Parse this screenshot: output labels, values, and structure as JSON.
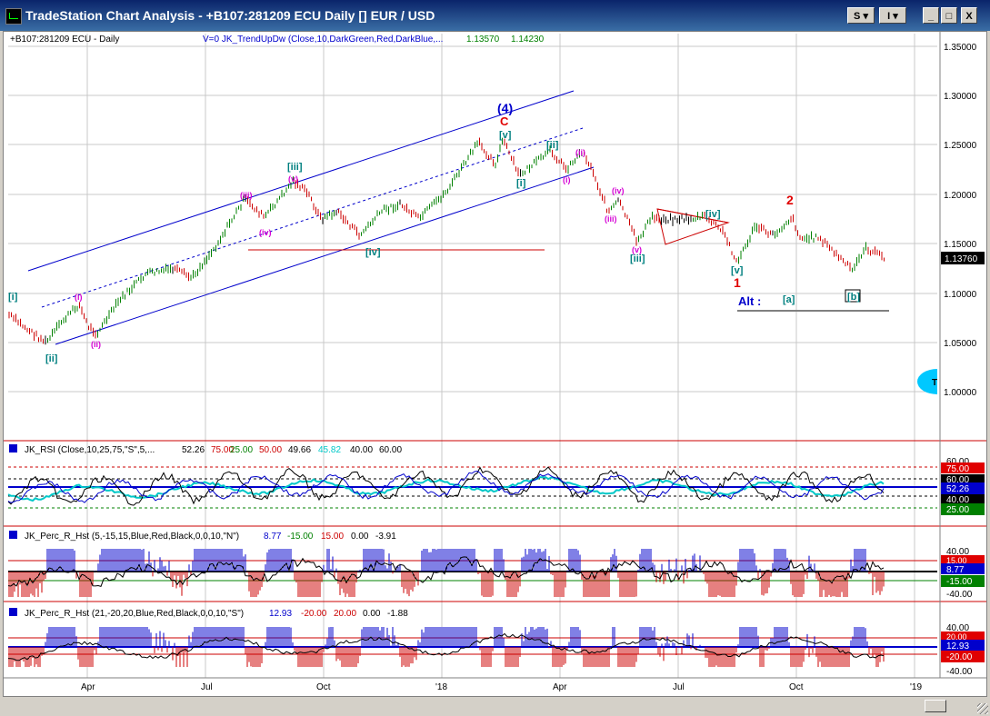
{
  "window": {
    "title": "TradeStation Chart Analysis - +B107:281209 ECU Daily [] EUR / USD",
    "btn_s": "S",
    "btn_i": "I",
    "btn_min": "_",
    "btn_max": "□",
    "btn_close": "X"
  },
  "chart": {
    "symbol_label": "+B107:281209 ECU - Daily",
    "indicator_header": "V=0  JK_TrendUpDw (Close,10,DarkGreen,Red,DarkBlue,...",
    "indicator_val1": "1.13570",
    "indicator_val2": "1.14230",
    "price_axis": [
      "1.35000",
      "1.30000",
      "1.25000",
      "1.20000",
      "1.15000",
      "1.10000",
      "1.05000",
      "1.00000"
    ],
    "last_price": "1.13760",
    "time_axis": [
      "Apr",
      "Jul",
      "Oct",
      "'18",
      "Apr",
      "Jul",
      "Oct",
      "'19"
    ],
    "wave_labels": {
      "w4": "(4)",
      "c": "C",
      "v_top": "[v]",
      "ii_top": "[ii]",
      "ii_small": "(ii)",
      "i_mid": "[i]",
      "i_small": "(i)",
      "iii_cap": "[iii]",
      "iii_small": "(iii)",
      "v_small": "(v)",
      "iv_small": "(iv)",
      "iv_main": "[iv]",
      "i_left": "[i]",
      "i_left_small": "(i)",
      "ii_left": "[ii]",
      "ii_left_small": "(ii)",
      "iv_right": "(iv)",
      "iii_right_small": "(iii)",
      "v_right_small": "(v)",
      "iii_right": "[iii]",
      "iv_tri": "[iv]",
      "v_low": "[v]",
      "one": "1",
      "two": "2",
      "alt": "Alt :",
      "a": "[a]",
      "b": "[b]"
    }
  },
  "rsi": {
    "header": "JK_RSI (Close,10,25,75,\"S\",5,...",
    "val1": "52.26",
    "val2": "75.00",
    "val3": "25.00",
    "val4": "50.00",
    "val5": "49.66",
    "val6": "45.82",
    "val7": "40.00",
    "val8": "60.00",
    "axis_top": "60.00",
    "tag_75": "75.00",
    "tag_60": "60.00",
    "tag_5226": "52.26",
    "tag_40": "40.00",
    "tag_25": "25.00"
  },
  "perc1": {
    "header": "JK_Perc_R_Hst (5,-15,15,Blue,Red,Black,0,0,10,\"N\")",
    "v1": "8.77",
    "v2": "-15.00",
    "v3": "15.00",
    "v4": "0.00",
    "v5": "-3.91",
    "axis_top": "40.00",
    "axis_bot": "-40.00",
    "tag_15": "15.00",
    "tag_877": "8.77",
    "tag_m15": "-15.00"
  },
  "perc2": {
    "header": "JK_Perc_R_Hst (21,-20,20,Blue,Red,Black,0,0,10,\"S\")",
    "v1": "12.93",
    "v2": "-20.00",
    "v3": "20.00",
    "v4": "0.00",
    "v5": "-1.88",
    "axis_top": "40.00",
    "axis_bot": "-40.00",
    "tag_20": "20.00",
    "tag_1293": "12.93",
    "tag_m20": "-20.00"
  },
  "colors": {
    "title_bar": "#0a246a",
    "price_up": "#008000",
    "price_down": "#cc0000",
    "price_flat": "#000000",
    "channel": "#0000cc",
    "wave_magenta": "#d400d4",
    "wave_teal": "#008080",
    "wave_red": "#e00000",
    "wave_blue": "#0000cc"
  }
}
